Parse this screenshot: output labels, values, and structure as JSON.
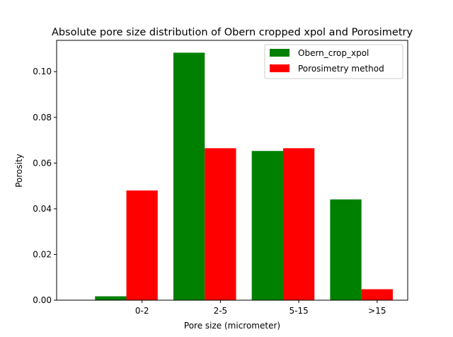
{
  "chart_data": {
    "type": "bar",
    "title": "Absolute pore size distribution of Obern cropped xpol and Porosimetry",
    "xlabel": "Pore size (micrometer)",
    "ylabel": "Porosity",
    "categories": [
      "0-2",
      "2-5",
      "5-15",
      ">15"
    ],
    "series": [
      {
        "name": "Obern_crop_xpol",
        "color": "#008000",
        "values": [
          0.0017,
          0.1083,
          0.0653,
          0.0441
        ]
      },
      {
        "name": "Porosimetry method",
        "color": "#ff0000",
        "values": [
          0.048,
          0.0665,
          0.0665,
          0.0048
        ]
      }
    ],
    "ylim": [
      0,
      0.1137
    ],
    "yticks": [
      0.0,
      0.02,
      0.04,
      0.06,
      0.08,
      0.1
    ],
    "ytick_labels": [
      "0.00",
      "0.02",
      "0.04",
      "0.06",
      "0.08",
      "0.10"
    ],
    "grid": false,
    "legend_position": "top-right"
  }
}
